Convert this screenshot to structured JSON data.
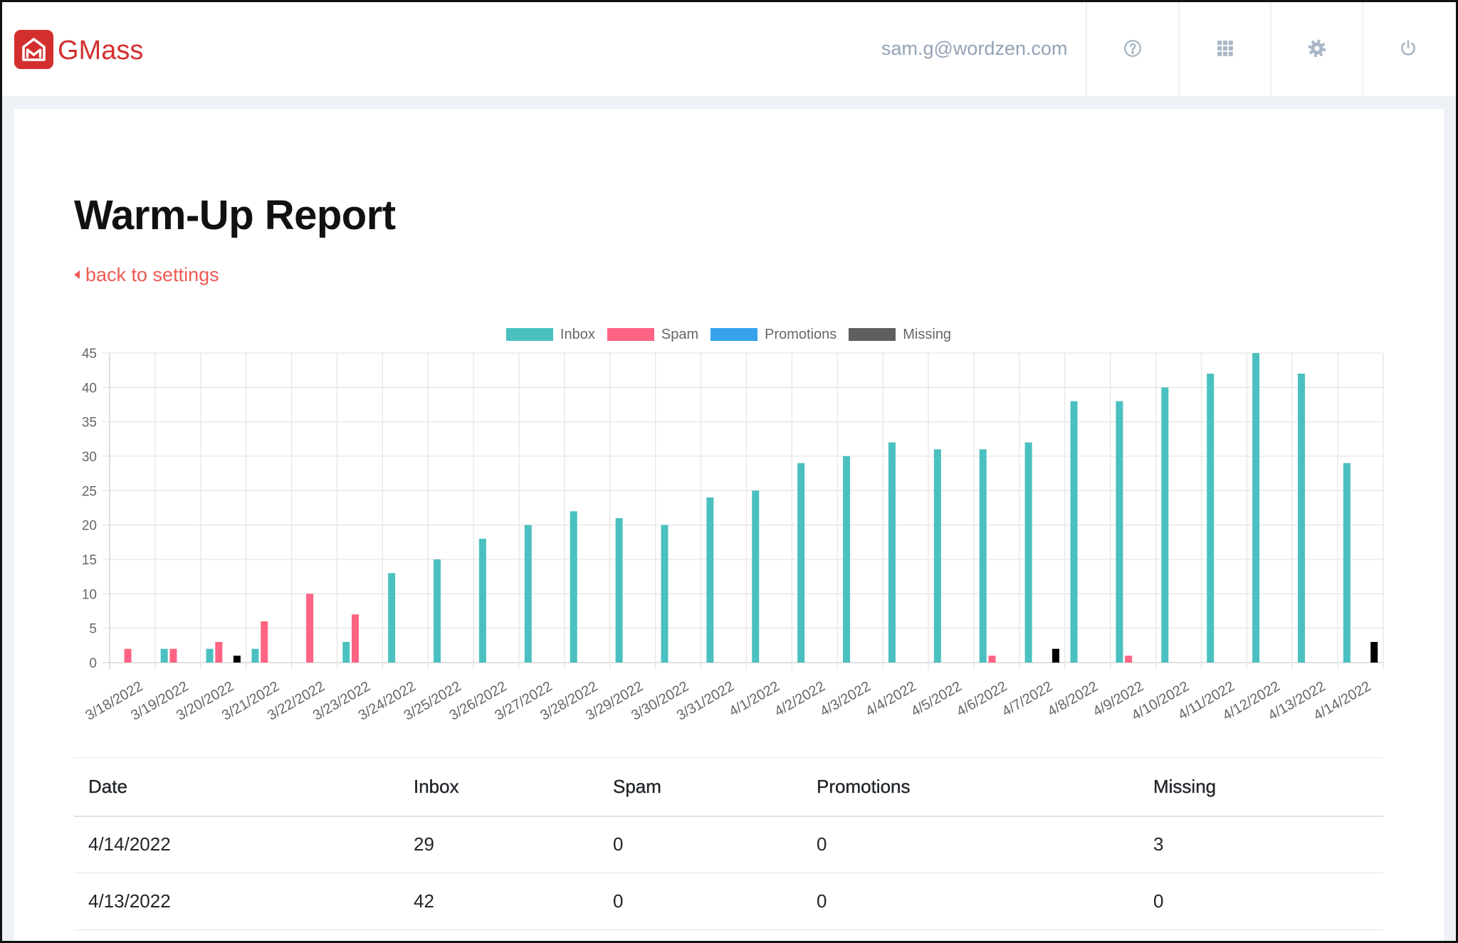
{
  "app": {
    "brand": "GMass",
    "brand_color": "#d32f2f",
    "user_email": "sam.g@wordzen.com",
    "header_icons": [
      "help-icon",
      "apps-grid-icon",
      "gear-icon",
      "power-icon"
    ]
  },
  "page": {
    "title": "Warm-Up Report",
    "back_link": "back to settings",
    "link_color": "#ec5b53"
  },
  "chart_data": {
    "type": "bar",
    "categories": [
      "3/18/2022",
      "3/19/2022",
      "3/20/2022",
      "3/21/2022",
      "3/22/2022",
      "3/23/2022",
      "3/24/2022",
      "3/25/2022",
      "3/26/2022",
      "3/27/2022",
      "3/28/2022",
      "3/29/2022",
      "3/30/2022",
      "3/31/2022",
      "4/1/2022",
      "4/2/2022",
      "4/3/2022",
      "4/4/2022",
      "4/5/2022",
      "4/6/2022",
      "4/7/2022",
      "4/8/2022",
      "4/9/2022",
      "4/10/2022",
      "4/11/2022",
      "4/12/2022",
      "4/13/2022",
      "4/14/2022"
    ],
    "series": [
      {
        "name": "Inbox",
        "color": "#4bc0c0",
        "values": [
          0,
          2,
          2,
          2,
          0,
          3,
          13,
          15,
          18,
          20,
          22,
          21,
          20,
          24,
          25,
          29,
          30,
          32,
          31,
          31,
          32,
          38,
          38,
          40,
          42,
          45,
          42,
          29
        ]
      },
      {
        "name": "Spam",
        "color": "#ff6384",
        "values": [
          2,
          2,
          3,
          6,
          10,
          7,
          0,
          0,
          0,
          0,
          0,
          0,
          0,
          0,
          0,
          0,
          0,
          0,
          0,
          1,
          0,
          0,
          1,
          0,
          0,
          0,
          0,
          0
        ]
      },
      {
        "name": "Promotions",
        "color": "#36a2eb",
        "values": [
          0,
          0,
          0,
          0,
          0,
          0,
          0,
          0,
          0,
          0,
          0,
          0,
          0,
          0,
          0,
          0,
          0,
          0,
          0,
          0,
          0,
          0,
          0,
          0,
          0,
          0,
          0,
          0
        ]
      },
      {
        "name": "Missing",
        "color": "#000000",
        "legend_color": "#5e5e5e",
        "values": [
          0,
          0,
          1,
          0,
          0,
          0,
          0,
          0,
          0,
          0,
          0,
          0,
          0,
          0,
          0,
          0,
          0,
          0,
          0,
          0,
          2,
          0,
          0,
          0,
          0,
          0,
          0,
          3
        ]
      }
    ],
    "ylim": [
      0,
      45
    ],
    "yticks": [
      0,
      5,
      10,
      15,
      20,
      25,
      30,
      35,
      40,
      45
    ],
    "grid": true,
    "legend": "top"
  },
  "table": {
    "columns": [
      "Date",
      "Inbox",
      "Spam",
      "Promotions",
      "Missing"
    ],
    "rows": [
      [
        "4/14/2022",
        29,
        0,
        0,
        3
      ],
      [
        "4/13/2022",
        42,
        0,
        0,
        0
      ]
    ]
  }
}
